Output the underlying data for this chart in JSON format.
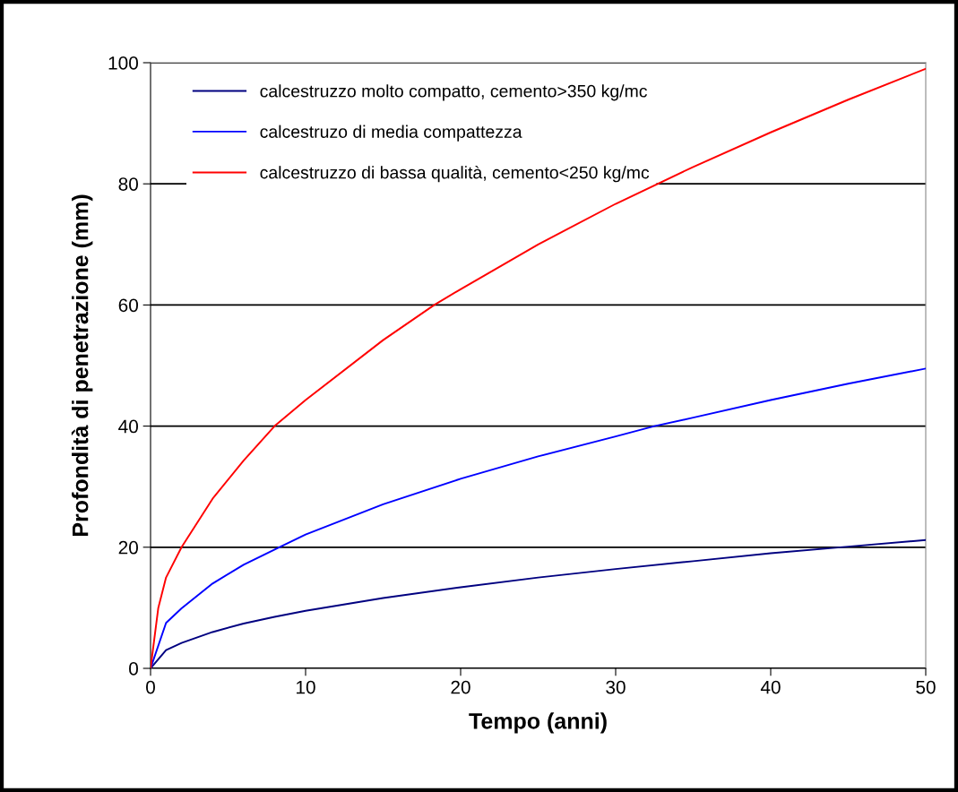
{
  "chart_data": {
    "type": "line",
    "xlabel": "Tempo (anni)",
    "ylabel": "Profondità di penetrazione (mm)",
    "xlim": [
      0,
      50
    ],
    "ylim": [
      0,
      100
    ],
    "xticks": [
      0,
      10,
      20,
      30,
      40,
      50
    ],
    "yticks": [
      0,
      20,
      40,
      60,
      80,
      100
    ],
    "grid": "y",
    "legend": "top left",
    "marker": "none",
    "line_style": "solid",
    "series": [
      {
        "name": "calcestruzzo molto compatto, cemento>350 kg/mc",
        "color": "#000080",
        "x": [
          0,
          1,
          2,
          4,
          6,
          8,
          10,
          15,
          20,
          25,
          30,
          35,
          40,
          45,
          50
        ],
        "values": [
          0,
          3,
          4.2,
          6,
          7.4,
          8.5,
          9.5,
          11.6,
          13.4,
          15,
          16.4,
          17.7,
          19,
          20.1,
          21.2
        ]
      },
      {
        "name": "calcestruzo di media compattezza",
        "color": "#0000ff",
        "x": [
          0,
          1,
          2,
          4,
          6,
          8.3,
          10,
          15,
          20,
          25,
          30,
          32.5,
          35,
          40,
          45,
          50
        ],
        "values": [
          0,
          7.5,
          9.9,
          14,
          17.1,
          20,
          22.1,
          27.1,
          31.3,
          35,
          38.3,
          40,
          41.4,
          44.3,
          47,
          49.5
        ]
      },
      {
        "name": "calcestruzzo di bassa qualità, cemento<250 kg/mc",
        "color": "#ff0000",
        "x": [
          0,
          0.5,
          1,
          2,
          4,
          6,
          8,
          10,
          15,
          18.3,
          20,
          25,
          30,
          35,
          40,
          45,
          50
        ],
        "values": [
          0,
          10,
          15,
          20,
          28,
          34.3,
          40,
          44.3,
          54.2,
          60,
          62.6,
          70,
          76.7,
          82.8,
          88.5,
          93.9,
          99
        ]
      }
    ]
  }
}
